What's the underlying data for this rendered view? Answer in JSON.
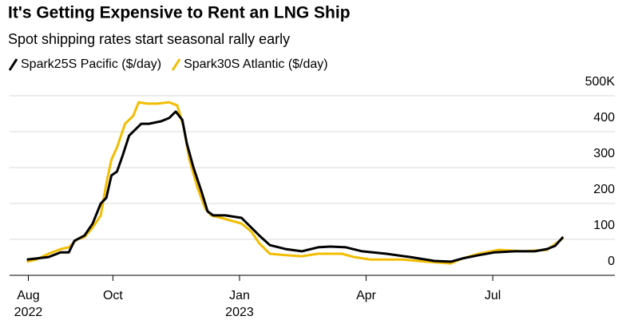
{
  "chart_data": {
    "type": "line",
    "title": "It's Getting Expensive to Rent an LNG Ship",
    "subtitle": "Spot shipping rates start seasonal rally early",
    "series": [
      {
        "name": "Spark25S Pacific ($/day)",
        "color": "#000000",
        "x": [
          2022.58,
          2022.599,
          2022.623,
          2022.647,
          2022.663,
          2022.674,
          2022.694,
          2022.71,
          2022.726,
          2022.737,
          2022.747,
          2022.758,
          2022.769,
          2022.782,
          2022.798,
          2022.806,
          2022.821,
          2022.845,
          2022.861,
          2022.874,
          2022.887,
          2022.896,
          2022.909,
          2022.925,
          2022.937,
          2022.948,
          2022.972,
          2023.004,
          2023.023,
          2023.039,
          2023.06,
          2023.091,
          2023.123,
          2023.155,
          2023.179,
          2023.21,
          2023.242,
          2023.29,
          2023.337,
          2023.385,
          2023.417,
          2023.44,
          2023.472,
          2023.504,
          2023.544,
          2023.583,
          2023.607,
          2023.623,
          2023.639
        ],
        "values": [
          44,
          47,
          51,
          64,
          64,
          96,
          111,
          144,
          200,
          216,
          278,
          289,
          333,
          389,
          411,
          422,
          422,
          429,
          438,
          456,
          433,
          367,
          300,
          233,
          178,
          167,
          167,
          160,
          133,
          111,
          84,
          73,
          67,
          78,
          80,
          78,
          67,
          60,
          51,
          40,
          38,
          47,
          56,
          64,
          67,
          67,
          73,
          82,
          107
        ]
      },
      {
        "name": "Spark30S Atlantic ($/day)",
        "color": "#f2bd00",
        "x": [
          2022.58,
          2022.599,
          2022.623,
          2022.647,
          2022.663,
          2022.679,
          2022.694,
          2022.71,
          2022.726,
          2022.737,
          2022.747,
          2022.758,
          2022.774,
          2022.79,
          2022.801,
          2022.817,
          2022.837,
          2022.861,
          2022.877,
          2022.89,
          2022.901,
          2022.917,
          2022.933,
          2022.944,
          2022.964,
          2023.004,
          2023.023,
          2023.039,
          2023.06,
          2023.091,
          2023.123,
          2023.155,
          2023.202,
          2023.226,
          2023.258,
          2023.321,
          2023.369,
          2023.417,
          2023.44,
          2023.472,
          2023.512,
          2023.56,
          2023.607,
          2023.623,
          2023.639
        ],
        "values": [
          38,
          44,
          60,
          73,
          78,
          100,
          107,
          133,
          167,
          256,
          322,
          356,
          422,
          444,
          482,
          478,
          478,
          482,
          473,
          411,
          322,
          244,
          184,
          167,
          160,
          144,
          122,
          89,
          60,
          56,
          53,
          60,
          60,
          51,
          44,
          44,
          38,
          33,
          47,
          60,
          71,
          67,
          71,
          87,
          104
        ]
      }
    ],
    "xlim": [
      2022.546,
      2023.741
    ],
    "xticks": [
      {
        "value": 2022.583,
        "label": "Aug"
      },
      {
        "value": 2022.75,
        "label": "Oct"
      },
      {
        "value": 2023.0,
        "label": "Jan"
      },
      {
        "value": 2023.25,
        "label": "Apr"
      },
      {
        "value": 2023.5,
        "label": "Jul"
      }
    ],
    "x_year_labels": [
      {
        "value": 2022.583,
        "label": "2022"
      },
      {
        "value": 2023.0,
        "label": "2023"
      }
    ],
    "ylim": [
      0,
      500
    ],
    "yticks": [
      0,
      100,
      200,
      300,
      400,
      {
        "value": 500,
        "label": "500K"
      }
    ],
    "grid": true
  }
}
